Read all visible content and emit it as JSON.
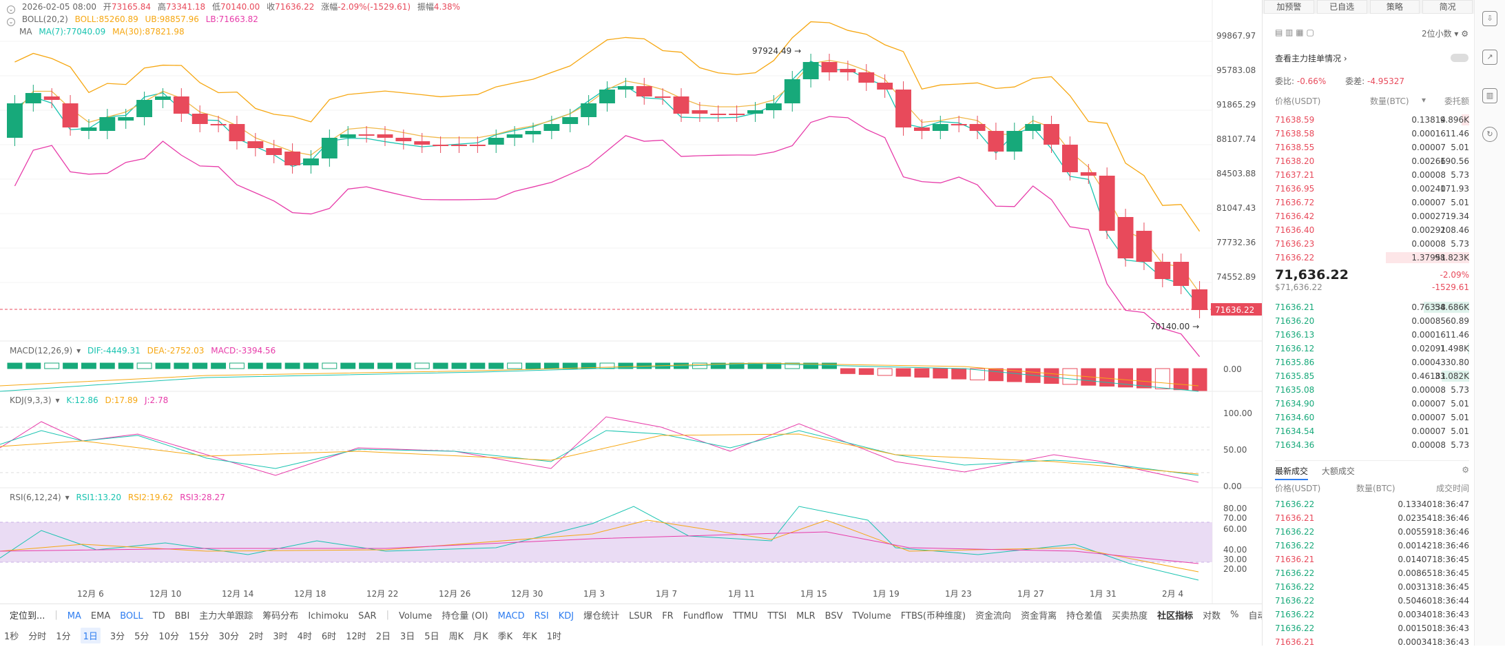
{
  "header": {
    "date": "2026-02-05 08:00",
    "open_label": "开",
    "open": "73165.84",
    "high_label": "高",
    "high": "73341.18",
    "low_label": "低",
    "low": "70140.00",
    "close_label": "收",
    "close": "71636.22",
    "change_label": "涨幅",
    "change": "-2.09%(-1529.61)",
    "amp_label": "振幅",
    "amp": "4.38%"
  },
  "boll": {
    "name": "BOLL(20,2)",
    "mid": "BOLL:85260.89",
    "ub": "UB:98857.96",
    "lb": "LB:71663.82"
  },
  "ma": {
    "name": "MA",
    "ma7": "MA(7):77040.09",
    "ma30": "MA(30):87821.98"
  },
  "price_axis": [
    "99867.97",
    "95783.08",
    "91865.29",
    "88107.74",
    "84503.88",
    "81047.43",
    "77732.36",
    "74552.89"
  ],
  "current_price_tag": "71636.22",
  "high_marker": "97924.49",
  "low_marker": "70140.00",
  "macd": {
    "name": "MACD(12,26,9)",
    "dif": "DIF:-4449.31",
    "dea": "DEA:-2752.03",
    "macd": "MACD:-3394.56",
    "axis": [
      "0.00"
    ]
  },
  "kdj": {
    "name": "KDJ(9,3,3)",
    "k": "K:12.86",
    "d": "D:17.89",
    "j": "J:2.78",
    "axis": [
      "100.00",
      "50.00",
      "0.00"
    ]
  },
  "rsi": {
    "name": "RSI(6,12,24)",
    "rsi1": "RSI1:13.20",
    "rsi2": "RSI2:19.62",
    "rsi3": "RSI3:28.27",
    "axis": [
      "80.00",
      "70.00",
      "60.00",
      "40.00",
      "30.00",
      "20.00"
    ]
  },
  "date_axis": [
    "12月 6",
    "12月 10",
    "12月 14",
    "12月 18",
    "12月 22",
    "12月 26",
    "12月 30",
    "1月 3",
    "1月 7",
    "1月 11",
    "1月 15",
    "1月 19",
    "1月 23",
    "1月 27",
    "1月 31",
    "2月 4"
  ],
  "indicator_bar": {
    "locate": "定位到...",
    "main": [
      "MA",
      "EMA",
      "BOLL",
      "TD",
      "BBI",
      "主力大单跟踪",
      "筹码分布",
      "Ichimoku",
      "SAR"
    ],
    "sub": [
      "Volume",
      "持仓量 (OI)",
      "MACD",
      "RSI",
      "KDJ",
      "爆仓统计",
      "LSUR",
      "FR",
      "Fundflow",
      "TTMU",
      "TTSI",
      "MLR",
      "BSV",
      "TVolume",
      "FTBS(币种维度)",
      "资金流向",
      "资金背离",
      "持仓差值",
      "买卖热度"
    ],
    "community": "社区指标",
    "log": "对数",
    "pct": "%",
    "auto": "自动"
  },
  "timeframes": [
    "1秒",
    "分时",
    "1分",
    "1日",
    "3分",
    "5分",
    "10分",
    "15分",
    "30分",
    "2时",
    "3时",
    "4时",
    "6时",
    "12时",
    "2日",
    "3日",
    "5日",
    "周K",
    "月K",
    "季K",
    "年K",
    "1时"
  ],
  "right_panel": {
    "tabs": [
      "加预警",
      "已自选",
      "策略",
      "简况"
    ],
    "precision": "2位小数",
    "depth_label": "查看主力挂单情况",
    "ratio_label": "委比:",
    "ratio": "-0.66%",
    "diff_label": "委差:",
    "diff": "-4.95327",
    "cols": [
      "价格(USDT)",
      "数量(BTC)",
      "委托额"
    ],
    "asks": [
      [
        "71638.59",
        "0.13814",
        "9.896K",
        0.05
      ],
      [
        "71638.58",
        "0.00016",
        "11.46",
        0
      ],
      [
        "71638.55",
        "0.00007",
        "5.01",
        0
      ],
      [
        "71638.20",
        "0.00266",
        "190.56",
        0
      ],
      [
        "71637.21",
        "0.00008",
        "5.73",
        0
      ],
      [
        "71636.95",
        "0.00240",
        "171.93",
        0
      ],
      [
        "71636.72",
        "0.00007",
        "5.01",
        0
      ],
      [
        "71636.42",
        "0.00027",
        "19.34",
        0
      ],
      [
        "71636.40",
        "0.00291",
        "208.46",
        0
      ],
      [
        "71636.23",
        "0.00008",
        "5.73",
        0
      ],
      [
        "71636.22",
        "1.37951",
        "98.823K",
        0.55
      ]
    ],
    "mid_price": "71,636.22",
    "mid_sub": "$71,636.22",
    "mid_pct": "-2.09%",
    "mid_change": "-1529.61",
    "bids": [
      [
        "71636.21",
        "0.76338",
        "54.686K",
        0.3
      ],
      [
        "71636.20",
        "0.00085",
        "60.89",
        0
      ],
      [
        "71636.13",
        "0.00016",
        "11.46",
        0
      ],
      [
        "71636.12",
        "0.02091",
        "1.498K",
        0.01
      ],
      [
        "71635.86",
        "0.00043",
        "30.80",
        0
      ],
      [
        "71635.85",
        "0.46181",
        "33.082K",
        0.18
      ],
      [
        "71635.08",
        "0.00008",
        "5.73",
        0
      ],
      [
        "71634.90",
        "0.00007",
        "5.01",
        0
      ],
      [
        "71634.60",
        "0.00007",
        "5.01",
        0
      ],
      [
        "71634.54",
        "0.00007",
        "5.01",
        0
      ],
      [
        "71634.36",
        "0.00008",
        "5.73",
        0
      ]
    ],
    "trade_tabs": [
      "最新成交",
      "大额成交"
    ],
    "trade_cols": [
      "价格(USDT)",
      "数量(BTC)",
      "成交时间"
    ],
    "trades": [
      [
        "71636.22",
        "0.13340",
        "18:36:47",
        "g"
      ],
      [
        "71636.21",
        "0.02354",
        "18:36:46",
        "r"
      ],
      [
        "71636.22",
        "0.00559",
        "18:36:46",
        "g"
      ],
      [
        "71636.22",
        "0.00142",
        "18:36:46",
        "g"
      ],
      [
        "71636.21",
        "0.01407",
        "18:36:45",
        "r"
      ],
      [
        "71636.22",
        "0.00865",
        "18:36:45",
        "g"
      ],
      [
        "71636.22",
        "0.00313",
        "18:36:45",
        "g"
      ],
      [
        "71636.22",
        "0.50460",
        "18:36:44",
        "g"
      ],
      [
        "71636.22",
        "0.00340",
        "18:36:43",
        "g"
      ],
      [
        "71636.22",
        "0.00150",
        "18:36:43",
        "g"
      ],
      [
        "71636.21",
        "0.00034",
        "18:36:43",
        "r"
      ]
    ]
  },
  "colors": {
    "up": "#17a97a",
    "down": "#e84a5b",
    "ma7": "#18c3b0",
    "ma30": "#f6a712",
    "boll": "#e73ba9"
  }
}
